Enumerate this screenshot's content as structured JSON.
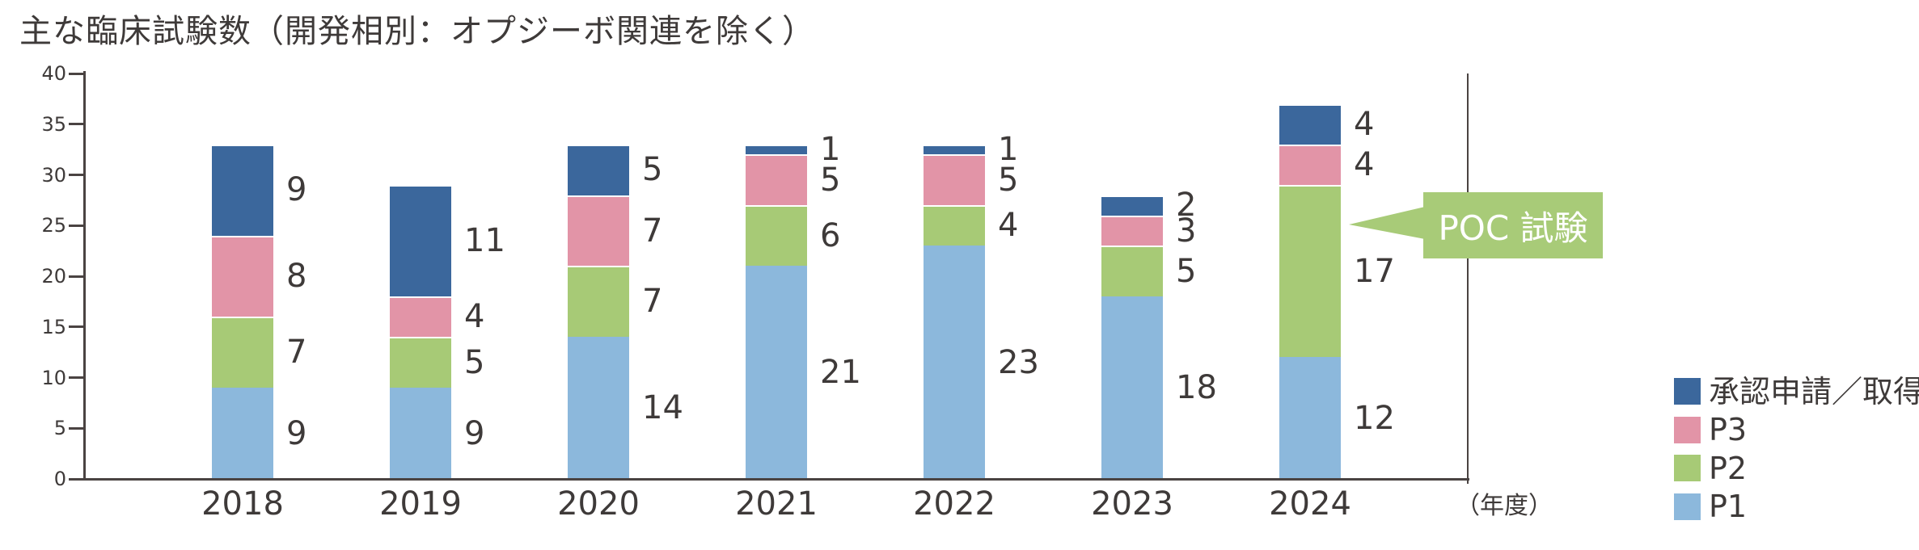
{
  "title": "主な臨床試験数（開発相別：オプジーボ関連を除く）",
  "colors": {
    "p1": "#8CB8DC",
    "p2": "#A7CA76",
    "p3": "#E294A7",
    "approval": "#3B679C",
    "callout_green": "#A8CB78",
    "text": "#3E3A39",
    "axis": "#4A4342",
    "background": "#FFFFFF"
  },
  "chart_data": {
    "type": "bar",
    "stacked": true,
    "title": "主な臨床試験数（開発相別：オプジーボ関連を除く）",
    "categories": [
      "2018",
      "2019",
      "2020",
      "2021",
      "2022",
      "2023",
      "2024"
    ],
    "series": [
      {
        "name": "P1",
        "color": "#8CB8DC",
        "values": [
          9,
          9,
          14,
          21,
          23,
          18,
          12
        ]
      },
      {
        "name": "P2",
        "color": "#A7CA76",
        "values": [
          7,
          5,
          7,
          6,
          4,
          5,
          17
        ]
      },
      {
        "name": "P3",
        "color": "#E294A7",
        "values": [
          8,
          4,
          7,
          5,
          5,
          3,
          4
        ]
      },
      {
        "name": "承認申請／取得",
        "color": "#3B679C",
        "values": [
          9,
          11,
          5,
          1,
          1,
          2,
          4
        ]
      }
    ],
    "ylim": [
      0,
      40
    ],
    "yticks": [
      0,
      5,
      10,
      15,
      20,
      25,
      30,
      35,
      40
    ],
    "xlabel": "（年度）",
    "grid": false,
    "data_labels": true,
    "legend_position": "right-bottom",
    "legend_order": [
      "承認申請／取得",
      "P3",
      "P2",
      "P1"
    ],
    "annotations": [
      {
        "text": "POC 試験",
        "target_category": "2024",
        "target_series": "P2",
        "color": "#A8CB78",
        "text_color": "#FFFFFF"
      }
    ]
  }
}
